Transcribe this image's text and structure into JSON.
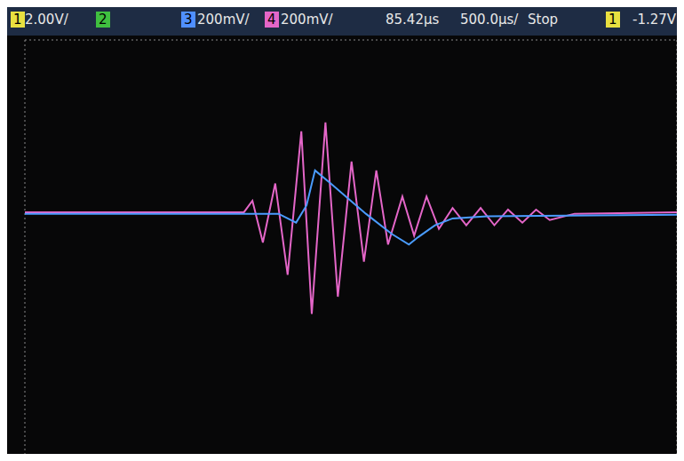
{
  "chart_data": {
    "type": "line",
    "annotations": [
      "1",
      "2.00V/",
      "2",
      "3",
      "200mV/",
      "4",
      "200mV/",
      "85.42µs",
      "500.0µs/",
      "Stop",
      "1",
      "-1.27V"
    ],
    "xlim": [
      0,
      10
    ],
    "xticks": [
      0,
      1,
      2,
      3,
      4,
      5,
      6,
      7,
      8,
      9,
      10
    ],
    "ylim": [
      -4,
      4
    ],
    "yticks": [
      -4,
      -3,
      -2,
      -1,
      0,
      1,
      2,
      3,
      4
    ],
    "grid": true,
    "tick_labels": false,
    "series": [
      {
        "color": "#e466c8",
        "x": [
          0,
          3.36,
          3.49,
          3.65,
          3.84,
          4.03,
          4.24,
          4.4,
          4.61,
          4.8,
          5.01,
          5.2,
          5.39,
          5.57,
          5.79,
          5.97,
          6.16,
          6.35,
          6.56,
          6.77,
          6.99,
          7.2,
          7.41,
          7.63,
          7.84,
          8.05,
          8.43,
          10
        ],
        "values": [
          0.7,
          0.7,
          0.92,
          0.12,
          1.25,
          -0.5,
          2.25,
          -1.25,
          2.42,
          -0.92,
          1.67,
          -0.25,
          1.5,
          0.08,
          1.0,
          0.25,
          1.0,
          0.38,
          0.78,
          0.45,
          0.78,
          0.45,
          0.75,
          0.5,
          0.75,
          0.55,
          0.67,
          0.7
        ]
      },
      {
        "color": "#4a9cff",
        "x": [
          0,
          3.89,
          4.16,
          4.32,
          4.45,
          4.69,
          5.23,
          5.63,
          5.89,
          6.03,
          6.29,
          6.56,
          7.09,
          7.89,
          10
        ],
        "values": [
          0.67,
          0.67,
          0.5,
          0.83,
          1.5,
          1.25,
          0.67,
          0.28,
          0.08,
          0.22,
          0.45,
          0.58,
          0.62,
          0.63,
          0.65
        ]
      }
    ]
  }
}
